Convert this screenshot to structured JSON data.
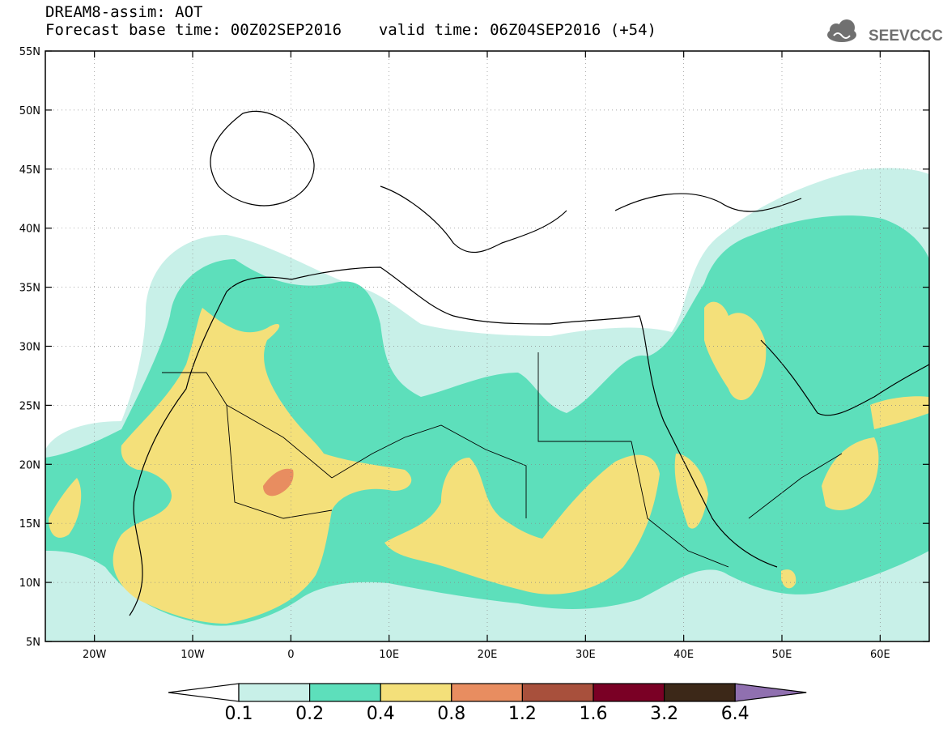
{
  "header": {
    "line1": "DREAM8-assim: AOT",
    "line2_left": "Forecast base time: 00Z02SEP2016",
    "line2_right": "valid time: 06Z04SEP2016 (+54)"
  },
  "logo": {
    "text": "SEEVCCC",
    "icon": "cloud-logo-icon"
  },
  "map": {
    "lon_range": [
      -25,
      65
    ],
    "lat_range": [
      5,
      55
    ],
    "lat_ticks": [
      "5N",
      "10N",
      "15N",
      "20N",
      "25N",
      "30N",
      "35N",
      "40N",
      "45N",
      "50N",
      "55N"
    ],
    "lon_ticks": [
      "20W",
      "10W",
      "0",
      "10E",
      "20E",
      "30E",
      "40E",
      "50E",
      "60E"
    ],
    "grid": "dotted"
  },
  "colors": {
    "c0_1": "#c8f0e8",
    "c0_2": "#5ddfbb",
    "c0_4": "#f4e07a",
    "c0_8": "#e88d60",
    "c1_2": "#a8503c",
    "c1_6": "#7a0025",
    "c3_2": "#3c2818",
    "c6_4": "#9070b0"
  },
  "legend": {
    "levels": [
      "0.1",
      "0.2",
      "0.4",
      "0.8",
      "1.2",
      "1.6",
      "3.2",
      "6.4"
    ],
    "colors": [
      "#c8f0e8",
      "#5ddfbb",
      "#f4e07a",
      "#e88d60",
      "#a8503c",
      "#7a0025",
      "#3c2818"
    ],
    "over_color": "#9070b0",
    "under_color": "#ffffff"
  }
}
